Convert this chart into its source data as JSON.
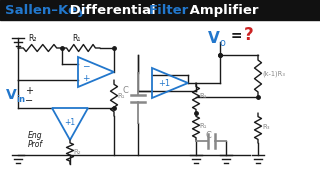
{
  "bg_color": "#ffffff",
  "title_bg": "#111111",
  "blue": "#2277cc",
  "gray": "#888888",
  "red": "#cc2222",
  "dark": "#1a1a1a",
  "title_texts": [
    "Sallen–Key",
    " Differential ",
    "Filter",
    " Amplifier"
  ],
  "title_colors": [
    "#2277cc",
    "#ffffff",
    "#2277cc",
    "#ffffff"
  ],
  "title_fontsize": 9.5
}
